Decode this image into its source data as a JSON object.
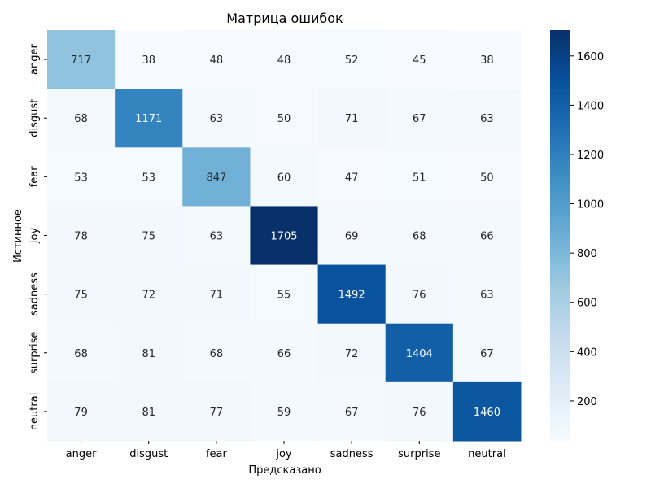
{
  "chart_data": {
    "type": "heatmap",
    "title": "Матрица ошибок",
    "xlabel": "Предсказано",
    "ylabel": "Истинное",
    "x_categories": [
      "anger",
      "disgust",
      "fear",
      "joy",
      "sadness",
      "surprise",
      "neutral"
    ],
    "y_categories": [
      "anger",
      "disgust",
      "fear",
      "joy",
      "sadness",
      "surprise",
      "neutral"
    ],
    "values": [
      [
        717,
        38,
        48,
        48,
        52,
        45,
        38
      ],
      [
        68,
        1171,
        63,
        50,
        71,
        67,
        63
      ],
      [
        53,
        53,
        847,
        60,
        47,
        51,
        50
      ],
      [
        78,
        75,
        63,
        1705,
        69,
        68,
        66
      ],
      [
        75,
        72,
        71,
        55,
        1492,
        76,
        63
      ],
      [
        68,
        81,
        68,
        66,
        72,
        1404,
        67
      ],
      [
        79,
        81,
        77,
        59,
        67,
        76,
        1460
      ]
    ],
    "colormap": "Blues",
    "colorbar": {
      "min": 38,
      "max": 1705,
      "ticks": [
        200,
        400,
        600,
        800,
        1000,
        1200,
        1400,
        1600
      ]
    },
    "grid": false
  }
}
